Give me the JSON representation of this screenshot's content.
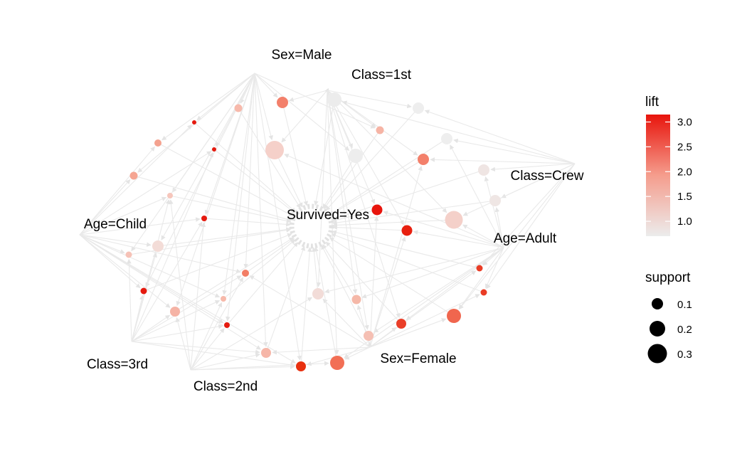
{
  "graph": {
    "items": {
      "sex_male": "Sex=Male",
      "class_1st": "Class=1st",
      "class_crew": "Class=Crew",
      "age_child": "Age=Child",
      "survived_yes": "Survived=Yes",
      "age_adult": "Age=Adult",
      "class_3rd": "Class=3rd",
      "class_2nd": "Class=2nd",
      "sex_female": "Sex=Female"
    }
  },
  "legend": {
    "lift": {
      "title": "lift",
      "ticks": [
        "3.0",
        "2.5",
        "2.0",
        "1.5",
        "1.0"
      ],
      "tick_values": [
        3.0,
        2.5,
        2.0,
        1.5,
        1.0
      ],
      "range": [
        0.7,
        3.15
      ],
      "color_low": "#ececec",
      "color_high": "#e8140c"
    },
    "support": {
      "title": "support",
      "entries": [
        "0.1",
        "0.2",
        "0.3"
      ],
      "values": [
        0.1,
        0.2,
        0.3
      ]
    }
  }
}
